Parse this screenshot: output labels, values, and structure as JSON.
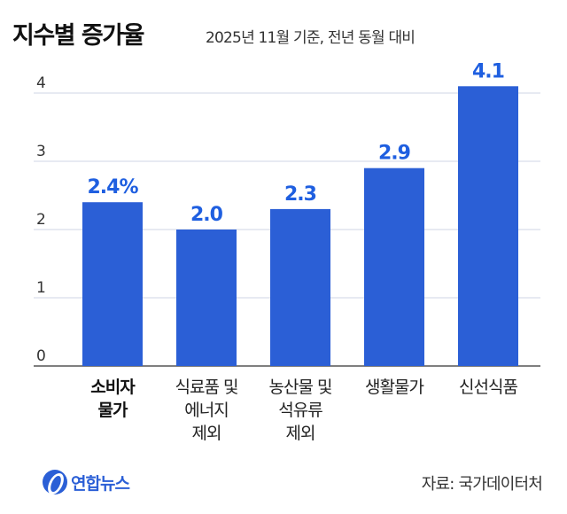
{
  "header": {
    "title": "지수별 증가율",
    "subtitle": "2025년 11월 기준, 전년 동월 대비"
  },
  "chart_data": {
    "type": "bar",
    "categories": [
      "소비자\n물가",
      "식료품 및\n에너지\n제외",
      "농산물 및\n석유류\n제외",
      "생활물가",
      "신선식품"
    ],
    "values": [
      2.4,
      2.0,
      2.3,
      2.9,
      4.1
    ],
    "value_labels": [
      "2.4%",
      "2.0",
      "2.3",
      "2.9",
      "4.1"
    ],
    "yticks": [
      "0",
      "1",
      "2",
      "3",
      "4"
    ],
    "ylim": [
      0,
      4.3
    ],
    "grid": true,
    "bar_color": "#2b5fd6",
    "label_color": "#1f5fe0"
  },
  "footer": {
    "logo_text": "연합뉴스",
    "source": "자료: 국가데이터처"
  }
}
